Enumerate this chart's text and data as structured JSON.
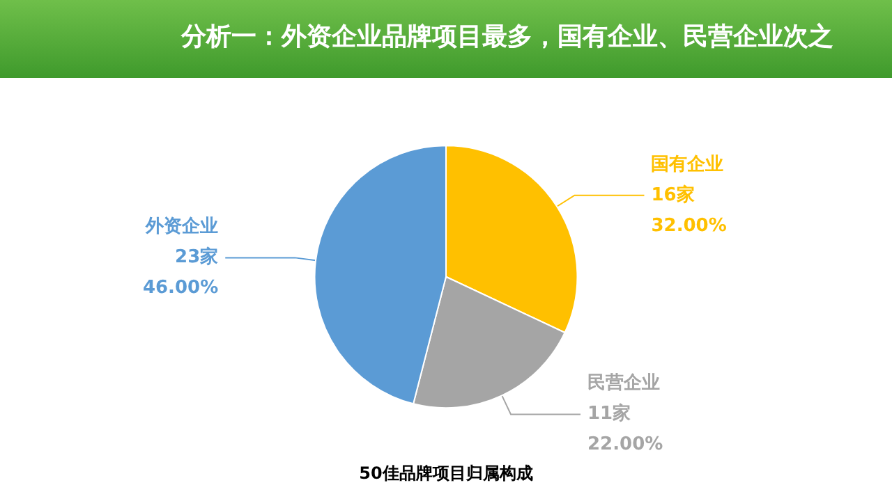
{
  "chart_data": {
    "type": "pie",
    "title": "分析一：外资企业品牌项目最多，国有企业、民营企业次之",
    "categories": [
      "国有企业",
      "民营企业",
      "外资企业"
    ],
    "values": [
      16,
      11,
      23
    ],
    "colors": [
      "#ffc000",
      "#a5a5a5",
      "#5b9bd5"
    ],
    "value_labels": [
      "16家\n32.00%",
      "11家\n22.00%",
      "23家\n46.00%"
    ],
    "annotations": [
      "50佳品牌项目归属构成"
    ],
    "legend": false
  }
}
